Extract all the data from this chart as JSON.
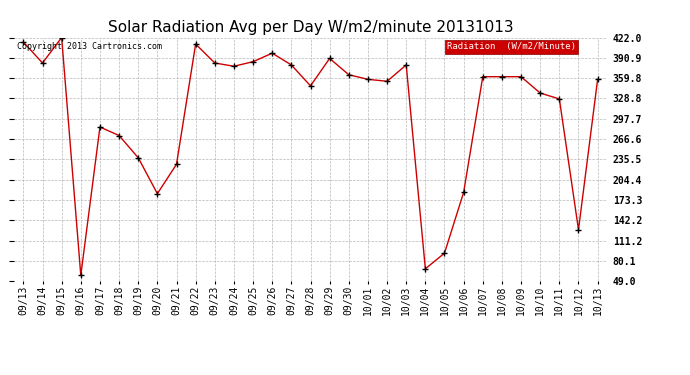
{
  "title": "Solar Radiation Avg per Day W/m2/minute 20131013",
  "copyright_text": "Copyright 2013 Cartronics.com",
  "legend_label": "Radiation  (W/m2/Minute)",
  "legend_bg": "#cc0000",
  "legend_text_color": "#ffffff",
  "background_color": "#ffffff",
  "plot_bg": "#ffffff",
  "grid_color": "#b0b0b0",
  "line_color": "#cc0000",
  "marker_color": "#000000",
  "title_fontsize": 11,
  "tick_fontsize": 7,
  "ylim": [
    49.0,
    422.0
  ],
  "yticks": [
    49.0,
    80.1,
    111.2,
    142.2,
    173.3,
    204.4,
    235.5,
    266.6,
    297.7,
    328.8,
    359.8,
    390.9,
    422.0
  ],
  "dates": [
    "09/13",
    "09/14",
    "09/15",
    "09/16",
    "09/17",
    "09/18",
    "09/19",
    "09/20",
    "09/21",
    "09/22",
    "09/23",
    "09/24",
    "09/25",
    "09/26",
    "09/27",
    "09/28",
    "09/29",
    "09/30",
    "10/01",
    "10/02",
    "10/03",
    "10/04",
    "10/05",
    "10/06",
    "10/07",
    "10/08",
    "10/09",
    "10/10",
    "10/11",
    "10/12",
    "10/13"
  ],
  "values": [
    415.0,
    383.0,
    422.0,
    58.0,
    285.0,
    272.0,
    238.0,
    183.0,
    228.0,
    412.0,
    383.0,
    378.0,
    385.0,
    398.0,
    380.0,
    348.0,
    390.0,
    365.0,
    358.0,
    355.0,
    380.0,
    68.0,
    92.0,
    185.0,
    362.0,
    362.0,
    362.0,
    337.0,
    328.0,
    128.0,
    358.0
  ]
}
